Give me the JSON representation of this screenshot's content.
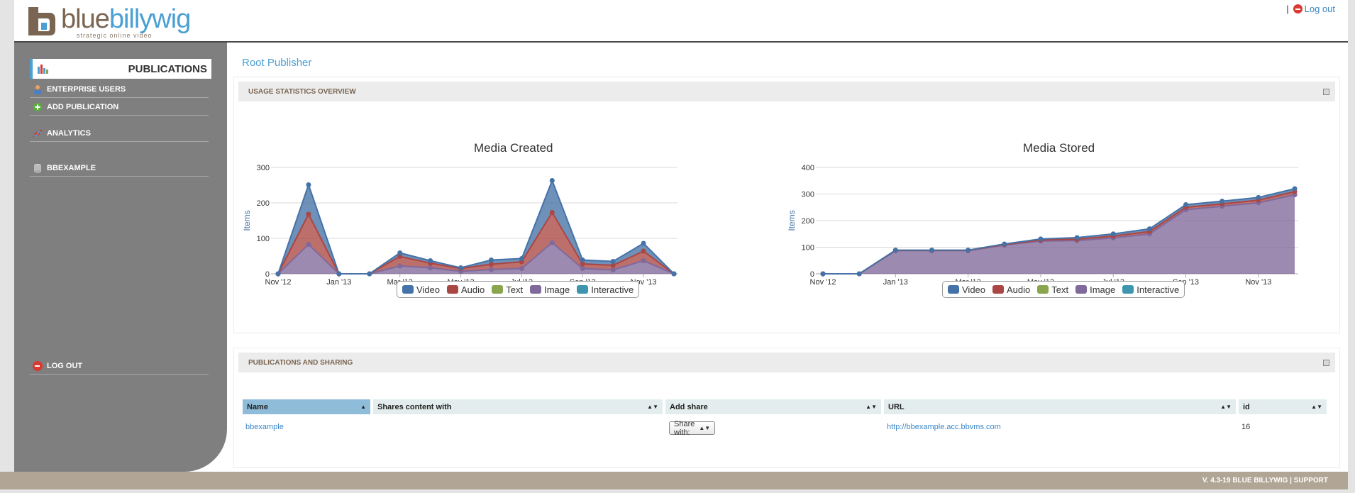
{
  "brand": {
    "logo_part1": "blue",
    "logo_part2": "billywig",
    "tagline": "strategic online video",
    "colors": {
      "brown": "#7a6552",
      "blue": "#4a9fd3"
    }
  },
  "header": {
    "logout_label": "Log out",
    "separator": "|"
  },
  "sidebar": {
    "active": {
      "label": "Publications",
      "icon": "bar-chart-icon"
    },
    "items": [
      {
        "label": "Enterprise Users",
        "icon": "user-icon"
      },
      {
        "label": "Add Publication",
        "icon": "plus-circle-icon"
      },
      {
        "label": "Analytics",
        "icon": "line-chart-icon"
      },
      {
        "label": "BBEXAMPLE",
        "icon": "database-icon"
      },
      {
        "label": "Log out",
        "icon": "minus-circle-icon"
      }
    ]
  },
  "breadcrumb": "Root Publisher",
  "usage_panel": {
    "title": "Usage Statistics Overview"
  },
  "sharing_panel": {
    "title": "Publications and sharing",
    "columns": [
      "Name",
      "Shares content with",
      "Add share",
      "URL",
      "id"
    ],
    "rows": [
      {
        "name": "bbexample",
        "shares": "",
        "add_share": "Share with:",
        "url": "http://bbexample.acc.bbvms.com",
        "id": "16"
      }
    ]
  },
  "legend": [
    "Video",
    "Audio",
    "Text",
    "Image",
    "Interactive"
  ],
  "series_colors": {
    "Video": "#4572a7",
    "Audio": "#aa4643",
    "Text": "#89a54e",
    "Image": "#80699b",
    "Interactive": "#3d96ae"
  },
  "chart_data": [
    {
      "type": "area",
      "title": "Media Created",
      "ylabel": "Items",
      "ylim": [
        0,
        300
      ],
      "yticks": [
        0,
        100,
        200,
        300
      ],
      "xticks": [
        "Nov '12",
        "Jan '13",
        "Mar '13",
        "May '13",
        "Jul '13",
        "Sep '13",
        "Nov '13"
      ],
      "x": [
        "Nov '12",
        "Dec '12",
        "Jan '13",
        "Feb '13",
        "Mar '13",
        "Apr '13",
        "May '13",
        "Jun '13",
        "Jul '13",
        "Aug '13",
        "Sep '13",
        "Oct '13",
        "Nov '13",
        "Dec '13"
      ],
      "series": [
        {
          "name": "Video",
          "values": [
            0,
            83,
            0,
            0,
            10,
            7,
            2,
            12,
            9,
            90,
            11,
            11,
            22,
            0
          ]
        },
        {
          "name": "Audio",
          "values": [
            0,
            85,
            0,
            0,
            27,
            13,
            8,
            15,
            19,
            85,
            13,
            13,
            27,
            0
          ]
        },
        {
          "name": "Text",
          "values": [
            0,
            0,
            0,
            0,
            0,
            0,
            0,
            0,
            0,
            0,
            0,
            0,
            0,
            0
          ]
        },
        {
          "name": "Image",
          "values": [
            0,
            83,
            0,
            0,
            22,
            17,
            7,
            12,
            15,
            88,
            15,
            11,
            37,
            0
          ]
        },
        {
          "name": "Interactive",
          "values": [
            0,
            0,
            0,
            0,
            0,
            0,
            0,
            0,
            0,
            0,
            0,
            0,
            0,
            0
          ]
        }
      ]
    },
    {
      "type": "area",
      "title": "Media Stored",
      "ylabel": "Items",
      "ylim": [
        0,
        400
      ],
      "yticks": [
        0,
        100,
        200,
        300,
        400
      ],
      "xticks": [
        "Nov '12",
        "Jan '13",
        "Mar '13",
        "May '13",
        "Jul '13",
        "Sep '13",
        "Nov '13"
      ],
      "x": [
        "Nov '12",
        "Dec '12",
        "Jan '13",
        "Feb '13",
        "Mar '13",
        "Apr '13",
        "May '13",
        "Jun '13",
        "Jul '13",
        "Aug '13",
        "Sep '13",
        "Oct '13",
        "Nov '13",
        "Dec '13"
      ],
      "series": [
        {
          "name": "Video",
          "values": [
            0,
            0,
            1,
            1,
            1,
            2,
            4,
            6,
            8,
            10,
            10,
            10,
            10,
            11
          ]
        },
        {
          "name": "Audio",
          "values": [
            0,
            0,
            1,
            1,
            1,
            2,
            4,
            5,
            7,
            9,
            9,
            9,
            10,
            12
          ]
        },
        {
          "name": "Text",
          "values": [
            0,
            0,
            0,
            0,
            0,
            0,
            0,
            0,
            0,
            0,
            0,
            0,
            0,
            0
          ]
        },
        {
          "name": "Image",
          "values": [
            0,
            0,
            87,
            87,
            87,
            108,
            123,
            125,
            135,
            150,
            241,
            254,
            267,
            297
          ]
        },
        {
          "name": "Interactive",
          "values": [
            0,
            0,
            0,
            0,
            0,
            0,
            0,
            0,
            0,
            0,
            0,
            0,
            0,
            0
          ]
        }
      ]
    }
  ],
  "footer": {
    "text": "v. 4.3-19 Blue Billywig | Support"
  }
}
